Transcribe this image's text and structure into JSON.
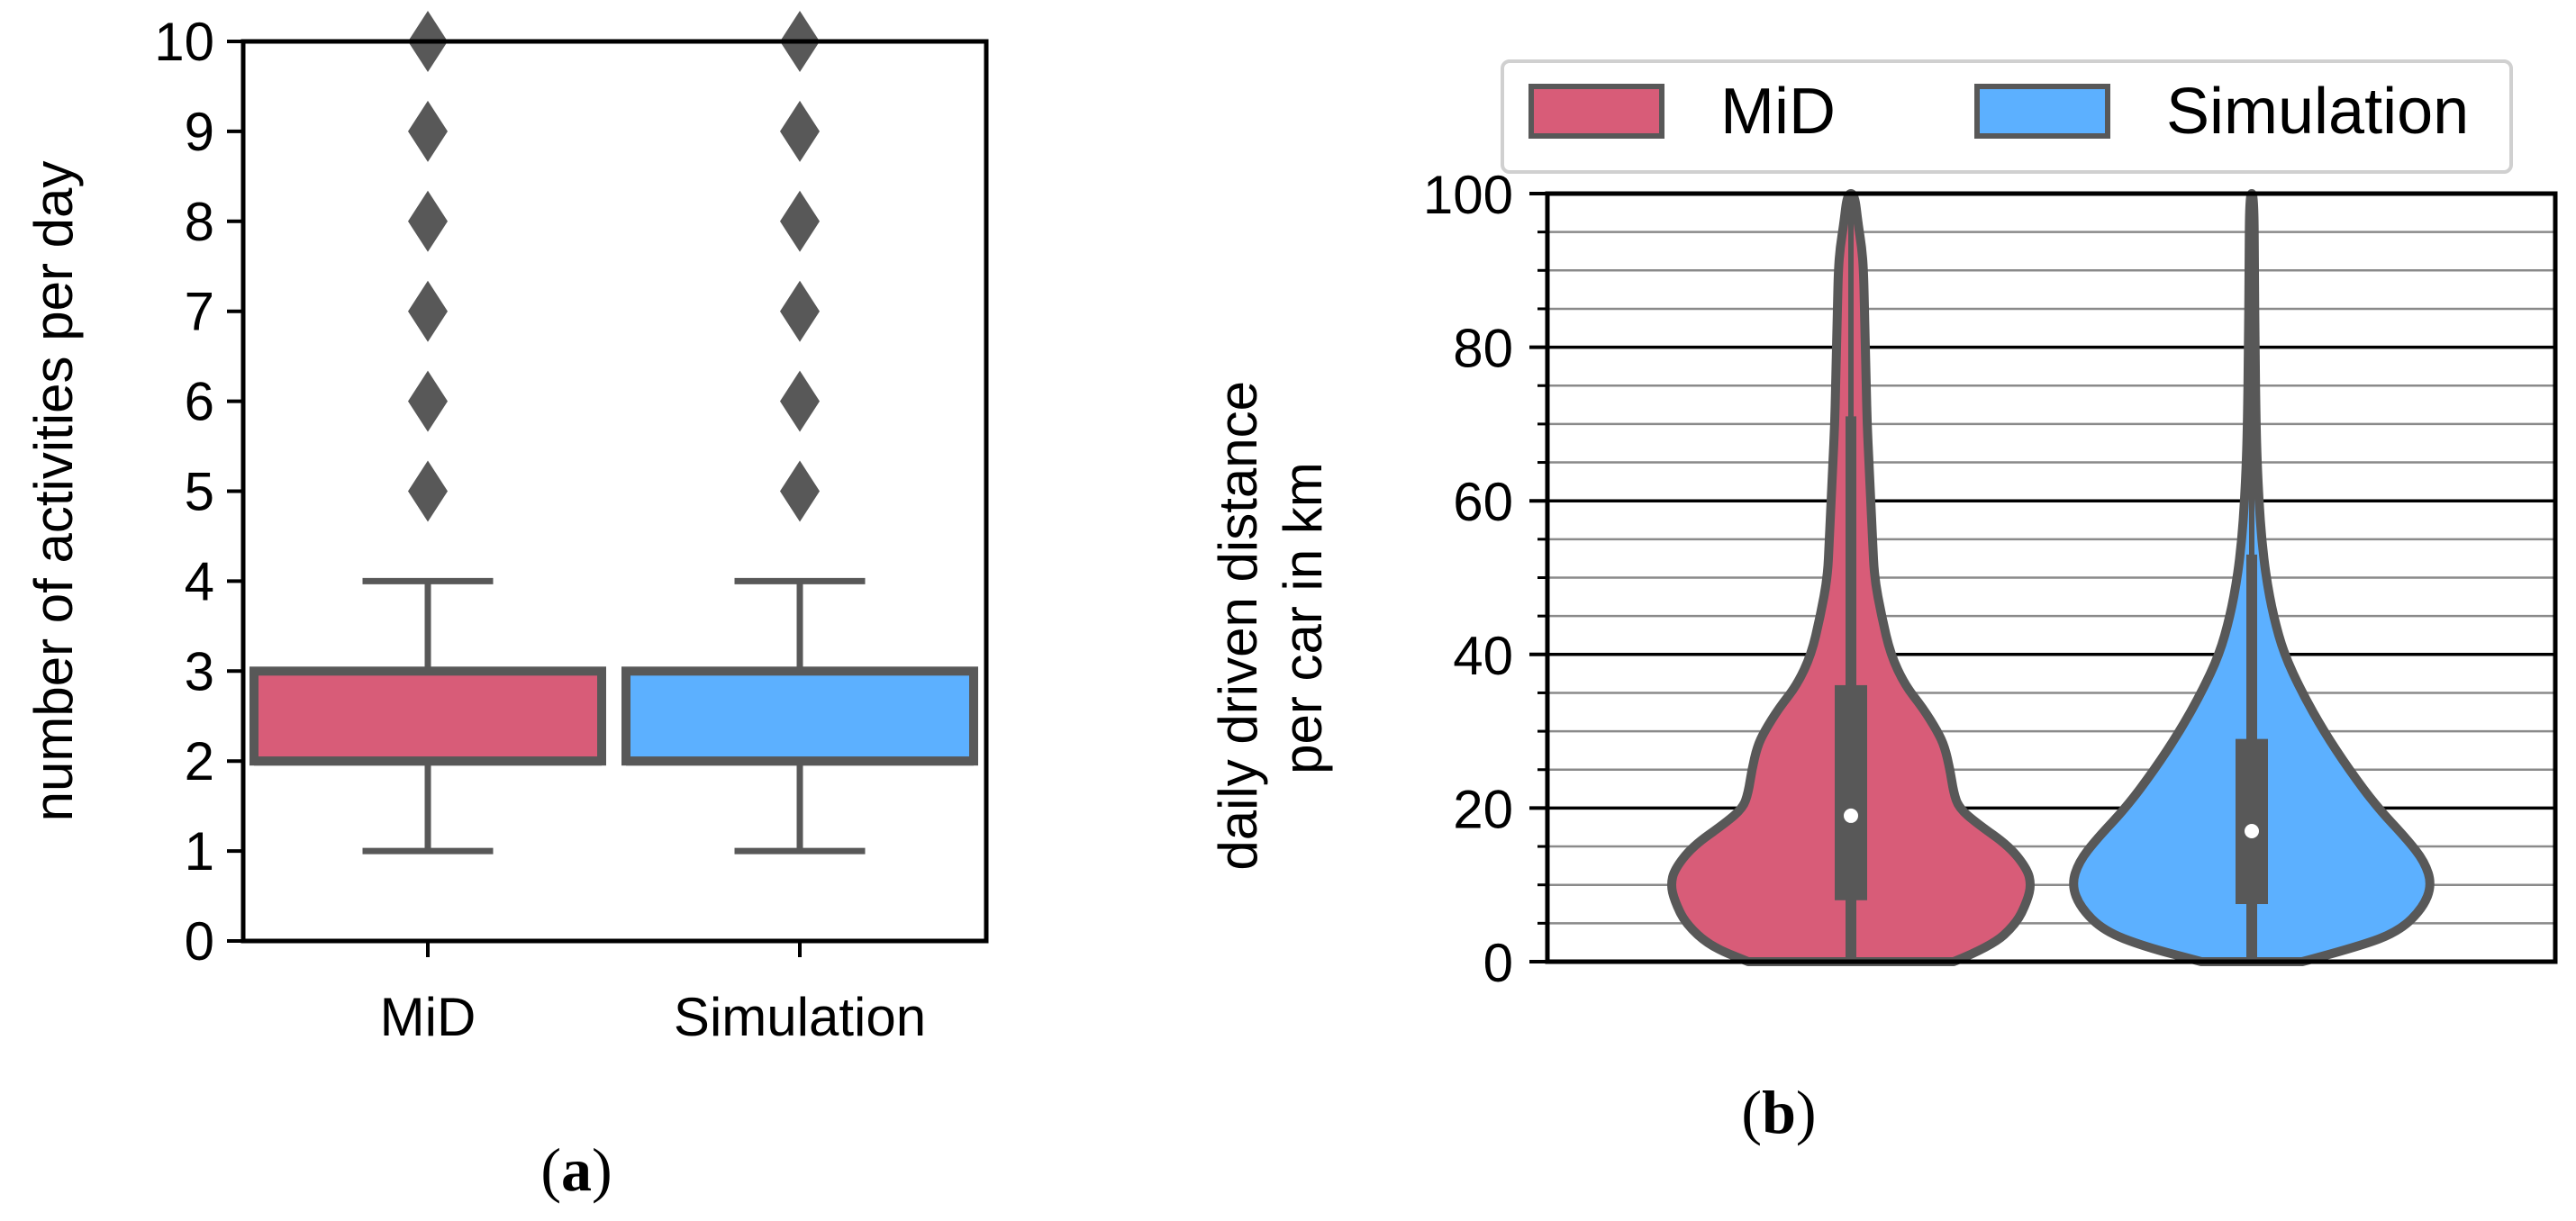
{
  "colors": {
    "mid": "#d85c78",
    "simulation": "#5cb0ff",
    "outline": "#585858"
  },
  "chart_data": [
    {
      "type": "box",
      "panel_label": "a",
      "ylabel": "number of activities per day",
      "ylim": [
        0,
        10
      ],
      "yticks": [
        "0",
        "1",
        "2",
        "3",
        "4",
        "5",
        "6",
        "7",
        "8",
        "9",
        "10"
      ],
      "categories": [
        "MiD",
        "Simulation"
      ],
      "series": [
        {
          "name": "MiD",
          "whisker_low": 1,
          "q1": 2,
          "median": 2,
          "q3": 3,
          "whisker_high": 4,
          "outliers": [
            5,
            6,
            7,
            8,
            9,
            10
          ],
          "color": "#d85c78"
        },
        {
          "name": "Simulation",
          "whisker_low": 1,
          "q1": 2,
          "median": 2,
          "q3": 3,
          "whisker_high": 4,
          "outliers": [
            5,
            6,
            7,
            8,
            9,
            10
          ],
          "color": "#5cb0ff"
        }
      ],
      "grid": false
    },
    {
      "type": "violin",
      "panel_label": "b",
      "ylabel_lines": [
        "daily driven distance",
        "per car in km"
      ],
      "ylim": [
        0,
        100
      ],
      "yticks": [
        "0",
        "20",
        "40",
        "60",
        "80",
        "100"
      ],
      "legend": {
        "position": "top",
        "entries": [
          "MiD",
          "Simulation"
        ]
      },
      "grid": true,
      "series": [
        {
          "name": "MiD",
          "color": "#d85c78",
          "median": 19,
          "q1": 8,
          "q3": 36,
          "whisker_low": 0,
          "whisker_high": 71,
          "max": 100,
          "density": [
            [
              0,
              0.57
            ],
            [
              2,
              0.78
            ],
            [
              5,
              0.92
            ],
            [
              8,
              0.98
            ],
            [
              10,
              1.0
            ],
            [
              12,
              0.98
            ],
            [
              15,
              0.88
            ],
            [
              18,
              0.7
            ],
            [
              20,
              0.6
            ],
            [
              22,
              0.57
            ],
            [
              25,
              0.55
            ],
            [
              28,
              0.52
            ],
            [
              30,
              0.48
            ],
            [
              33,
              0.4
            ],
            [
              36,
              0.3
            ],
            [
              40,
              0.22
            ],
            [
              45,
              0.17
            ],
            [
              50,
              0.13
            ],
            [
              55,
              0.12
            ],
            [
              60,
              0.11
            ],
            [
              65,
              0.1
            ],
            [
              70,
              0.09
            ],
            [
              75,
              0.085
            ],
            [
              80,
              0.08
            ],
            [
              85,
              0.075
            ],
            [
              90,
              0.07
            ],
            [
              93,
              0.06
            ],
            [
              96,
              0.04
            ],
            [
              100,
              0.02
            ]
          ]
        },
        {
          "name": "Simulation",
          "color": "#5cb0ff",
          "median": 17,
          "q1": 7.5,
          "q3": 29,
          "whisker_low": 0,
          "whisker_high": 53,
          "max": 100,
          "density": [
            [
              0,
              0.28
            ],
            [
              2,
              0.6
            ],
            [
              4,
              0.82
            ],
            [
              7,
              0.95
            ],
            [
              10,
              1.0
            ],
            [
              13,
              0.96
            ],
            [
              16,
              0.86
            ],
            [
              20,
              0.7
            ],
            [
              25,
              0.54
            ],
            [
              30,
              0.4
            ],
            [
              35,
              0.28
            ],
            [
              40,
              0.18
            ],
            [
              45,
              0.12
            ],
            [
              50,
              0.08
            ],
            [
              55,
              0.055
            ],
            [
              60,
              0.04
            ],
            [
              65,
              0.03
            ],
            [
              70,
              0.024
            ],
            [
              80,
              0.018
            ],
            [
              90,
              0.015
            ],
            [
              100,
              0.012
            ]
          ]
        }
      ]
    }
  ]
}
